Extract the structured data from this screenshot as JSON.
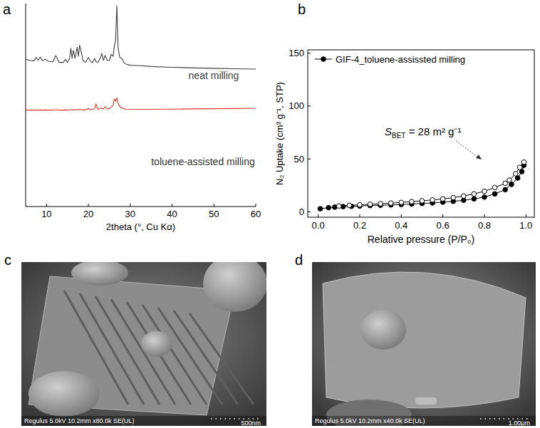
{
  "chart_data": [
    {
      "panel": "a",
      "type": "line",
      "x_label": "2theta (°, Cu Kα)",
      "x": [
        5,
        6,
        7,
        7.5,
        8,
        8.5,
        9,
        9.7,
        10.5,
        11.5,
        12.2,
        13,
        14,
        14.5,
        15,
        15.5,
        15.8,
        16.1,
        16.4,
        16.8,
        17.3,
        17.6,
        17.9,
        18.3,
        18.7,
        19.3,
        20,
        20.6,
        21,
        21.5,
        21.8,
        22.3,
        23,
        23.2,
        23.6,
        24,
        24.5,
        25,
        25.5,
        25.9,
        26.2,
        26.5,
        26.8,
        27.1,
        27.5,
        28,
        28.5,
        29,
        30,
        32,
        35,
        40,
        45,
        50,
        55,
        60
      ],
      "xlim": [
        5,
        60
      ],
      "xticks": [
        10,
        20,
        30,
        40,
        50,
        60
      ],
      "ylim": [
        0,
        100
      ],
      "tick_labels": "x",
      "series": [
        {
          "name": "neat milling",
          "color": "#404040",
          "values": [
            72.5,
            72.0,
            71.8,
            73.5,
            72.0,
            73.6,
            71.8,
            72.6,
            71.5,
            71.3,
            74.4,
            71.0,
            71.0,
            72.5,
            71.0,
            73.0,
            78.0,
            73.0,
            77.0,
            73.0,
            78.5,
            74.0,
            79.5,
            76.0,
            72.0,
            71.0,
            73.5,
            71.2,
            71.0,
            73.0,
            71.5,
            71.0,
            74.0,
            75.5,
            72.0,
            74.5,
            72.0,
            72.0,
            75.0,
            74.0,
            79.0,
            82.0,
            99.0,
            78.0,
            73.5,
            73.0,
            71.0,
            70.2,
            69.6,
            69.5,
            69.0,
            68.6,
            68.3,
            68.1,
            67.9,
            67.7
          ]
        },
        {
          "name": "toluene-assisted milling",
          "color": "#d9372b",
          "values": [
            47.6,
            47.5,
            47.5,
            47.6,
            47.5,
            47.6,
            47.5,
            47.6,
            47.5,
            47.5,
            47.7,
            47.5,
            47.5,
            47.6,
            47.5,
            47.6,
            47.8,
            47.6,
            47.7,
            47.6,
            47.8,
            47.6,
            47.9,
            47.7,
            47.6,
            47.6,
            48.2,
            47.7,
            47.8,
            48.3,
            50.5,
            47.9,
            48.6,
            48.4,
            48.0,
            49.2,
            48.2,
            48.2,
            49.0,
            49.8,
            53.0,
            51.8,
            53.5,
            51.0,
            49.2,
            48.6,
            48.2,
            48.0,
            47.9,
            47.9,
            47.9,
            48.0,
            48.1,
            48.2,
            48.3,
            48.4
          ]
        }
      ]
    },
    {
      "panel": "b",
      "type": "line",
      "x_label": "Relative pressure (P/P₀)",
      "y_label": "N₂ Uptake (cm³ g⁻¹, STP)",
      "xlim": [
        -0.05,
        1.04
      ],
      "xticks": [
        {
          "value": 0,
          "label": "0.0"
        },
        0.2,
        0.4,
        0.6,
        0.8,
        {
          "value": 1,
          "label": "1.0"
        }
      ],
      "ylim": [
        -5,
        153
      ],
      "yticks": [
        0,
        50,
        100,
        150
      ],
      "legend": "upper left",
      "annotation": "SBET = 28 m² g⁻¹",
      "series": [
        {
          "name": "GIF-4_toluene-assissted milling",
          "color": "#000000",
          "marker": "filled-circle",
          "line_style": "solid",
          "x": [
            0.01,
            0.05,
            0.08,
            0.12,
            0.16,
            0.2,
            0.25,
            0.3,
            0.35,
            0.4,
            0.45,
            0.5,
            0.55,
            0.6,
            0.65,
            0.7,
            0.75,
            0.8,
            0.85,
            0.9,
            0.93,
            0.96,
            0.98,
            0.99
          ],
          "values": [
            3,
            4,
            4.5,
            5,
            5.3,
            5.6,
            6,
            6.3,
            6.6,
            7,
            7.5,
            8,
            8.5,
            9.2,
            10,
            11,
            12.3,
            14,
            17,
            21,
            26,
            32,
            38,
            44
          ]
        },
        {
          "color": "#000000",
          "marker": "open-circle",
          "line_style": "solid",
          "x": [
            0.99,
            0.97,
            0.95,
            0.92,
            0.9,
            0.85,
            0.8,
            0.75,
            0.7,
            0.65,
            0.6,
            0.55,
            0.5,
            0.45,
            0.4,
            0.35,
            0.3,
            0.25,
            0.2,
            0.15,
            0.1
          ],
          "values": [
            47,
            42,
            36,
            30,
            27,
            23,
            19.5,
            17,
            15,
            13.5,
            12.3,
            11.3,
            10.5,
            9.7,
            9,
            8.3,
            7.7,
            7.2,
            6.7,
            6.2,
            5.6
          ]
        }
      ]
    }
  ],
  "images": [
    {
      "panel": "c",
      "info": "Regulus 5.0kV 10.2mm x80.0k SE(UL)",
      "scale_bar": "500nm"
    },
    {
      "panel": "d",
      "info": "Regulus 5.0kV 10.2mm x40.0k SE(UL)",
      "scale_bar": "1.00μm"
    }
  ]
}
